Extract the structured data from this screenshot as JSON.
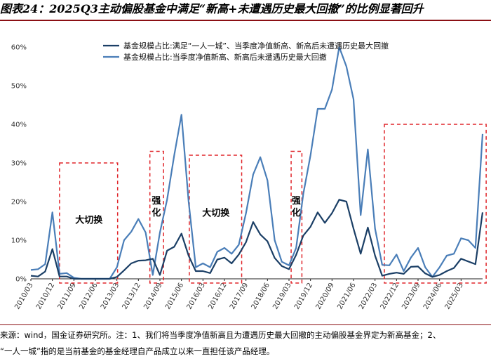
{
  "figure": {
    "title": "图表24：2025Q3主动偏股基金中满足“新高+未遭遇历史最大回撤”的比例显著回升",
    "source_line1": "来源：wind，国金证券研究所。注：1、我们将当季度净值新高且为遭遇历史最大回撤的主动偏股基金界定为新高基金；2、",
    "source_line2": "“一人一城”指的是当前基金的基金经理自产品成立以来一直担任该产品经理。"
  },
  "colors": {
    "series1": "#1b3f66",
    "series2": "#4a7eb8",
    "box": "#e0262b",
    "rule": "#8b0f14"
  },
  "chart_data": {
    "type": "line",
    "ylim": [
      0,
      0.62
    ],
    "yticks": [
      0,
      0.1,
      0.2,
      0.3,
      0.4,
      0.5,
      0.6
    ],
    "ytick_labels": [
      "0%",
      "10%",
      "20%",
      "30%",
      "40%",
      "50%",
      "60%"
    ],
    "xtick_labels": [
      "2010/03",
      "2010/12",
      "2011/09",
      "2012/06",
      "2013/03",
      "2013/12",
      "2014/09",
      "2015/06",
      "2016/03",
      "2016/12",
      "2017/09",
      "2018/06",
      "2019/03",
      "2019/12",
      "2020/09",
      "2021/06",
      "2022/03",
      "2022/12",
      "2023/09",
      "2024/06",
      "2025/03"
    ],
    "x_start": "2010/03",
    "x_end": "2025/09",
    "frequency": "quarterly",
    "series": [
      {
        "name": "基金规模占比:满足“一人一城”、当季度净值新高、新高后未遭遇历史最大回撤",
        "values": [
          0.008,
          0.006,
          0.019,
          0.077,
          0.006,
          0.006,
          0.0,
          0.0,
          0.0,
          0.0,
          0.0,
          0.0,
          0.005,
          0.022,
          0.04,
          0.047,
          0.048,
          0.052,
          0.01,
          0.073,
          0.083,
          0.117,
          0.06,
          0.02,
          0.02,
          0.015,
          0.05,
          0.055,
          0.04,
          0.063,
          0.095,
          0.147,
          0.115,
          0.097,
          0.054,
          0.033,
          0.025,
          0.062,
          0.112,
          0.135,
          0.172,
          0.145,
          0.17,
          0.205,
          0.2,
          0.13,
          0.065,
          0.133,
          0.06,
          0.008,
          0.013,
          0.016,
          0.013,
          0.031,
          0.032,
          0.014,
          0.005,
          0.01,
          0.02,
          0.028,
          0.052,
          0.045,
          0.038,
          0.172
        ]
      },
      {
        "name": "基金规模占比:当季度净值新高、新高后未遭遇历史最大回撤",
        "values": [
          0.023,
          0.025,
          0.038,
          0.172,
          0.013,
          0.015,
          0.003,
          0.0,
          0.0,
          0.0,
          0.0,
          0.0,
          0.03,
          0.1,
          0.122,
          0.155,
          0.12,
          0.01,
          0.12,
          0.205,
          0.32,
          0.425,
          0.2,
          0.03,
          0.04,
          0.03,
          0.07,
          0.08,
          0.065,
          0.088,
          0.17,
          0.27,
          0.315,
          0.255,
          0.1,
          0.044,
          0.035,
          0.08,
          0.22,
          0.32,
          0.44,
          0.44,
          0.49,
          0.6,
          0.55,
          0.465,
          0.165,
          0.335,
          0.13,
          0.036,
          0.035,
          0.063,
          0.02,
          0.055,
          0.08,
          0.03,
          0.005,
          0.03,
          0.06,
          0.065,
          0.105,
          0.1,
          0.08,
          0.375
        ]
      }
    ],
    "annotations": [
      {
        "text": "大切换"
      },
      {
        "text": "强化"
      },
      {
        "text": "大切换"
      },
      {
        "text": "强化"
      }
    ],
    "legend_position": "top-center",
    "grid": false
  }
}
